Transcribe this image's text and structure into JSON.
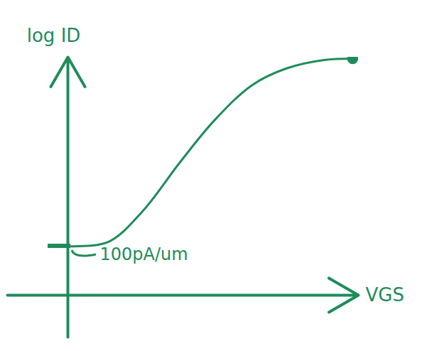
{
  "chart_data": {
    "type": "line",
    "x_label": "VGS",
    "y_label": "log ID",
    "annotation": "100pA/um",
    "x": [
      0,
      1.4,
      2.6,
      3.9,
      5.1,
      6.4,
      7.6,
      8.9,
      9.9
    ],
    "values": [
      1.75,
      1.9,
      3.0,
      4.75,
      6.25,
      7.5,
      8.1,
      8.4,
      8.45
    ],
    "color": "#1e8c5a",
    "xlim": [
      -2.1,
      10.1
    ],
    "ylim": [
      -1.5,
      8.5
    ],
    "xticks": [],
    "yticks": [],
    "tick_labels": false
  }
}
